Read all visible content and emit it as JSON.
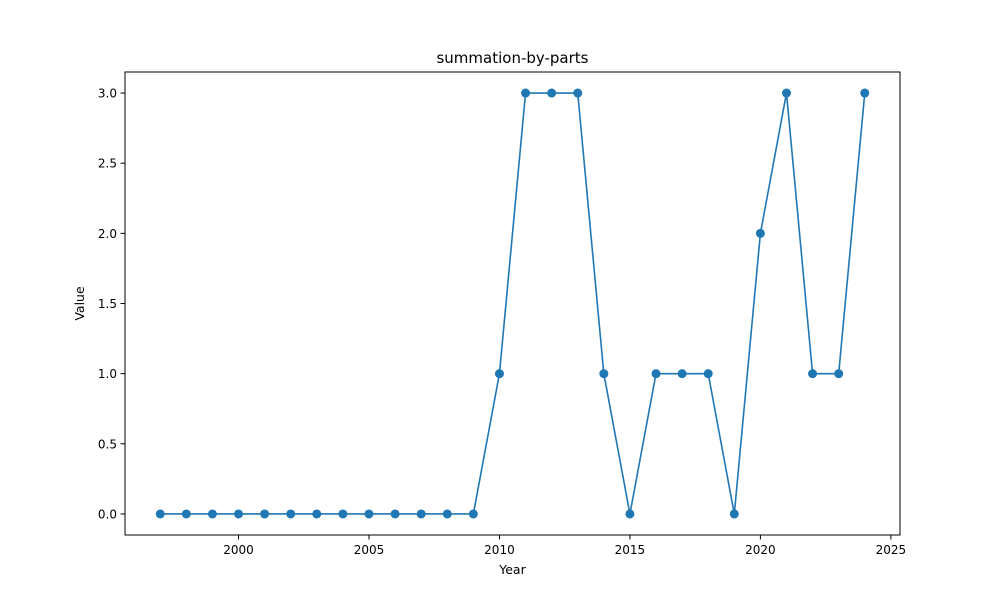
{
  "chart_data": {
    "type": "line",
    "title": "summation-by-parts",
    "xlabel": "Year",
    "ylabel": "Value",
    "xlim": [
      1995.65,
      2025.35
    ],
    "ylim": [
      -0.15,
      3.15
    ],
    "xticks": [
      2000,
      2005,
      2010,
      2015,
      2020,
      2025
    ],
    "yticks": [
      0.0,
      0.5,
      1.0,
      1.5,
      2.0,
      2.5,
      3.0
    ],
    "xtick_labels": [
      "2000",
      "2005",
      "2010",
      "2015",
      "2020",
      "2025"
    ],
    "ytick_labels": [
      "0.0",
      "0.5",
      "1.0",
      "1.5",
      "2.0",
      "2.5",
      "3.0"
    ],
    "grid": false,
    "marker": "circle",
    "color": "#1f77b4",
    "x": [
      1997,
      1998,
      1999,
      2000,
      2001,
      2002,
      2003,
      2004,
      2005,
      2006,
      2007,
      2008,
      2009,
      2010,
      2011,
      2012,
      2013,
      2014,
      2015,
      2016,
      2017,
      2018,
      2019,
      2020,
      2021,
      2022,
      2023,
      2024
    ],
    "values": [
      0,
      0,
      0,
      0,
      0,
      0,
      0,
      0,
      0,
      0,
      0,
      0,
      0,
      1,
      3,
      3,
      3,
      1,
      0,
      1,
      1,
      1,
      0,
      2,
      3,
      1,
      1,
      3
    ]
  }
}
